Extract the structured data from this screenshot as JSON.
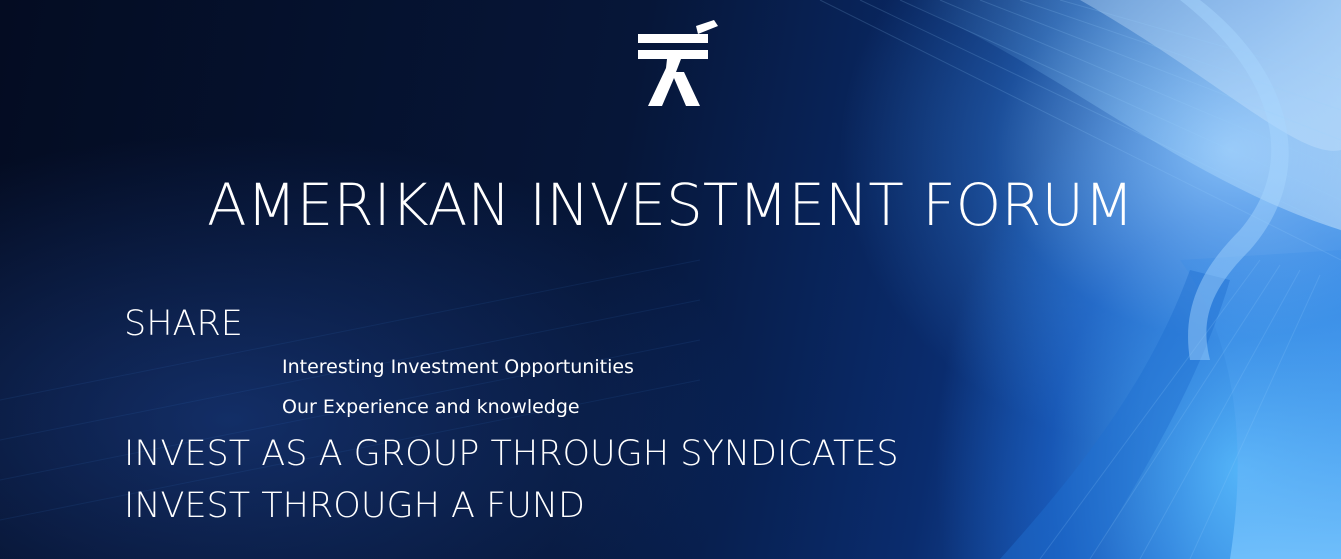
{
  "page": {
    "title": "AMERIKAN INVESTMENT FORUM",
    "logo_icon": "aif-monogram-icon"
  },
  "content": {
    "share_heading": "SHARE",
    "share_items": [
      "Interesting Investment Opportunities",
      "Our Experience and knowledge"
    ],
    "syndicates_heading": "INVEST AS A GROUP THROUGH SYNDICATES",
    "fund_heading": "INVEST THROUGH A FUND"
  },
  "colors": {
    "background_dark": "#061530",
    "accent_light_blue": "#58b0f5",
    "text": "#ffffff"
  }
}
